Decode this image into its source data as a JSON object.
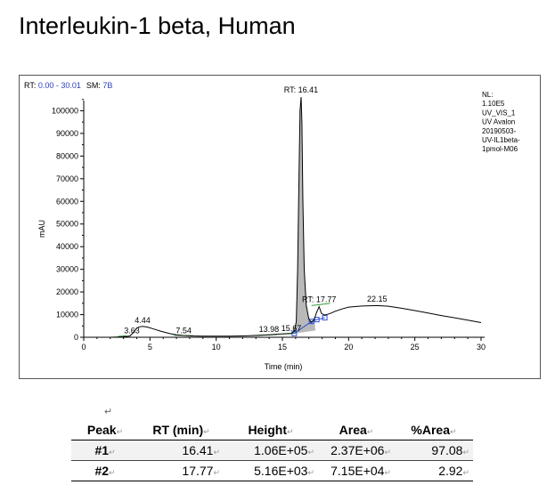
{
  "title": "Interleukin-1 beta, Human",
  "chart_data": {
    "type": "line",
    "header_left": {
      "rt_label": "RT: ",
      "rt_range": "0.00 - 30.01",
      "sm_label": "SM: ",
      "sm_value": "7B"
    },
    "info_lines": [
      "NL:",
      "1.10E5",
      "UV_VIS_1",
      "UV  Avalon",
      "20190503-",
      "UV-IL1beta-",
      "1pmol-M06"
    ],
    "xlabel": "Time (min)",
    "ylabel": "mAU",
    "xlim": [
      0,
      30
    ],
    "ylim": [
      0,
      110000
    ],
    "x_ticks": [
      0,
      5,
      10,
      15,
      20,
      25,
      30
    ],
    "y_ticks": [
      0,
      10000,
      20000,
      30000,
      40000,
      50000,
      60000,
      70000,
      80000,
      90000,
      100000
    ],
    "series": [
      {
        "x": [
          0,
          1,
          2,
          3,
          3.5,
          3.8,
          4.0,
          4.2,
          4.44,
          4.8,
          5.2,
          5.8,
          6.5,
          7.0,
          7.54,
          8.2,
          9,
          10,
          11,
          12,
          13,
          13.98,
          14.8,
          15.67,
          15.9,
          16.05,
          16.15,
          16.25,
          16.33,
          16.41,
          16.47,
          16.55,
          16.65,
          16.8,
          17.0,
          17.2,
          17.4,
          17.55,
          17.77,
          17.95,
          18.2,
          18.6,
          19,
          19.5,
          20,
          21,
          22.15,
          23,
          24,
          25,
          26,
          27,
          28,
          29,
          30
        ],
        "y": [
          0,
          0,
          0,
          200,
          600,
          2500,
          4000,
          4600,
          4800,
          4500,
          3800,
          2700,
          1600,
          1100,
          800,
          600,
          500,
          500,
          500,
          600,
          800,
          1100,
          1400,
          1700,
          2500,
          7000,
          30000,
          70000,
          100000,
          106000,
          95000,
          60000,
          30000,
          14000,
          8000,
          6600,
          7800,
          10500,
          13500,
          10500,
          9800,
          10500,
          11500,
          12500,
          13300,
          13800,
          14000,
          13700,
          12800,
          11800,
          10700,
          9600,
          8600,
          7600,
          6500
        ]
      }
    ],
    "peak_labels": [
      "3.63",
      "4.44",
      "7.54",
      "13.98",
      "15.67",
      "RT: 16.41",
      "RT: 17.77",
      "22.15"
    ]
  },
  "table": {
    "headers": [
      "Peak",
      "RT (min)",
      "Height",
      "Area",
      "%Area"
    ],
    "rows": [
      [
        "#1",
        "16.41",
        "1.06E+05",
        "2.37E+06",
        "97.08"
      ],
      [
        "#2",
        "17.77",
        "5.16E+03",
        "7.15E+04",
        "2.92"
      ]
    ]
  },
  "paragraph_mark": "↵"
}
